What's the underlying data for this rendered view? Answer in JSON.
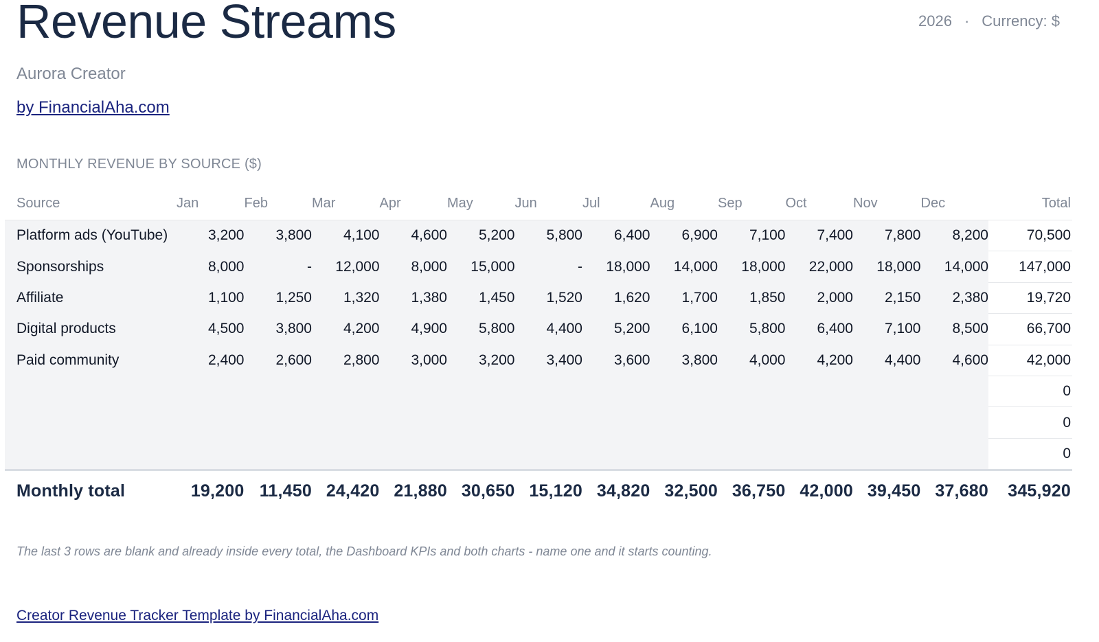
{
  "header": {
    "title": "Revenue Streams",
    "year": "2026",
    "separator": "·",
    "currency": "Currency: $",
    "subtitle": "Aurora Creator",
    "byline": "by FinancialAha.com"
  },
  "table": {
    "section_label": "MONTHLY REVENUE BY SOURCE ($)",
    "columns": [
      "Source",
      "Jan",
      "Feb",
      "Mar",
      "Apr",
      "May",
      "Jun",
      "Jul",
      "Aug",
      "Sep",
      "Oct",
      "Nov",
      "Dec",
      "Total"
    ],
    "rows": [
      {
        "source": "Platform ads (YouTube)",
        "months": [
          "3,200",
          "3,800",
          "4,100",
          "4,600",
          "5,200",
          "5,800",
          "6,400",
          "6,900",
          "7,100",
          "7,400",
          "7,800",
          "8,200"
        ],
        "total": "70,500"
      },
      {
        "source": "Sponsorships",
        "months": [
          "8,000",
          "-",
          "12,000",
          "8,000",
          "15,000",
          "-",
          "18,000",
          "14,000",
          "18,000",
          "22,000",
          "18,000",
          "14,000"
        ],
        "total": "147,000"
      },
      {
        "source": "Affiliate",
        "months": [
          "1,100",
          "1,250",
          "1,320",
          "1,380",
          "1,450",
          "1,520",
          "1,620",
          "1,700",
          "1,850",
          "2,000",
          "2,150",
          "2,380"
        ],
        "total": "19,720"
      },
      {
        "source": "Digital products",
        "months": [
          "4,500",
          "3,800",
          "4,200",
          "4,900",
          "5,800",
          "4,400",
          "5,200",
          "6,100",
          "5,800",
          "6,400",
          "7,100",
          "8,500"
        ],
        "total": "66,700"
      },
      {
        "source": "Paid community",
        "months": [
          "2,400",
          "2,600",
          "2,800",
          "3,000",
          "3,200",
          "3,400",
          "3,600",
          "3,800",
          "4,000",
          "4,200",
          "4,400",
          "4,600"
        ],
        "total": "42,000"
      },
      {
        "source": "",
        "months": [
          "",
          "",
          "",
          "",
          "",
          "",
          "",
          "",
          "",
          "",
          "",
          ""
        ],
        "total": "0"
      },
      {
        "source": "",
        "months": [
          "",
          "",
          "",
          "",
          "",
          "",
          "",
          "",
          "",
          "",
          "",
          ""
        ],
        "total": "0"
      },
      {
        "source": "",
        "months": [
          "",
          "",
          "",
          "",
          "",
          "",
          "",
          "",
          "",
          "",
          "",
          ""
        ],
        "total": "0"
      }
    ],
    "footer": {
      "label": "Monthly total",
      "months": [
        "19,200",
        "11,450",
        "24,420",
        "21,880",
        "30,650",
        "15,120",
        "34,820",
        "32,500",
        "36,750",
        "42,000",
        "39,450",
        "37,680"
      ],
      "total": "345,920"
    }
  },
  "note": "The last 3 rows are blank and already inside every total, the Dashboard KPIs and both charts - name one and it starts counting.",
  "footer_link": "Creator Revenue Tracker Template by FinancialAha.com"
}
